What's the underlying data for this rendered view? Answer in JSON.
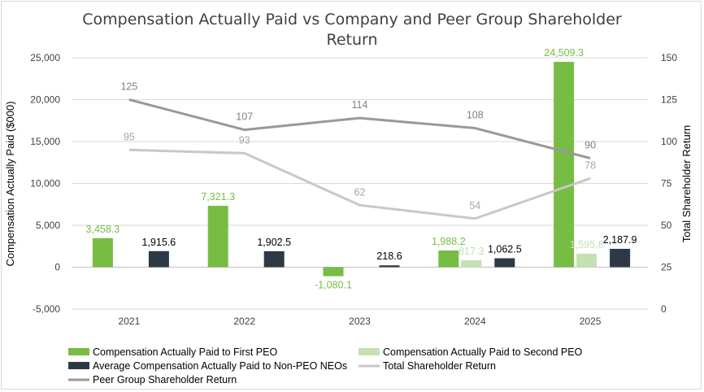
{
  "chart_data": {
    "type": "bar",
    "title_lines": [
      "Compensation Actually Paid vs Company and Peer Group Shareholder",
      "Return"
    ],
    "title": "Compensation Actually Paid vs Company and Peer Group Shareholder Return",
    "categories": [
      "2021",
      "2022",
      "2023",
      "2024",
      "2025"
    ],
    "ylabel": "Compensation Actually Paid ($000)",
    "y2label": "Total Shareholder Return",
    "ylim": [
      -5000,
      25000
    ],
    "y2lim": [
      0,
      150
    ],
    "yticks": [
      -5000,
      0,
      5000,
      10000,
      15000,
      20000,
      25000
    ],
    "ytick_labels": [
      "-5,000",
      "0",
      "5,000",
      "10,000",
      "15,000",
      "20,000",
      "25,000"
    ],
    "y2ticks": [
      0,
      25,
      50,
      75,
      100,
      125,
      150
    ],
    "y2tick_labels": [
      "0",
      "25",
      "50",
      "75",
      "100",
      "125",
      "150"
    ],
    "grid": true,
    "legend_position": "bottom",
    "bar_series": [
      {
        "name": "Compensation Actually Paid to First PEO",
        "color": "#77bc43",
        "values": [
          3458.3,
          7321.3,
          -1080.1,
          1988.2,
          24509.3
        ],
        "labels": [
          "3,458.3",
          "7,321.3",
          "-1,080.1",
          "1,988.2",
          "24,509.3"
        ],
        "label_color": "#77bc43"
      },
      {
        "name": "Compensation Actually Paid to Second PEO",
        "color": "#c5e0b3",
        "values": [
          null,
          null,
          null,
          817.3,
          1595.8
        ],
        "labels": [
          null,
          null,
          null,
          "817.3",
          "1,595.8"
        ],
        "label_color": "#c5e0b3"
      },
      {
        "name": "Average Compensation Actually Paid to Non-PEO NEOs",
        "color": "#2d3a45",
        "values": [
          1915.6,
          1902.5,
          218.6,
          1062.5,
          2187.9
        ],
        "labels": [
          "1,915.6",
          "1,902.5",
          "218.6",
          "1,062.5",
          "2,187.9"
        ],
        "label_color": "#000000"
      }
    ],
    "line_series": [
      {
        "name": "Total Shareholder Return",
        "color": "#c8c8c8",
        "axis": "right",
        "values": [
          95,
          93,
          62,
          54,
          78
        ],
        "labels": [
          "95",
          "93",
          "62",
          "54",
          "78"
        ],
        "label_color": "#a6a6a6"
      },
      {
        "name": "Peer Group Shareholder Return",
        "color": "#999999",
        "axis": "right",
        "values": [
          125,
          107,
          114,
          108,
          90
        ],
        "labels": [
          "125",
          "107",
          "114",
          "108",
          "90"
        ],
        "label_color": "#7f7f7f"
      }
    ],
    "legend": [
      {
        "name": "Compensation Actually Paid to First PEO",
        "kind": "bar",
        "color": "#77bc43"
      },
      {
        "name": "Compensation Actually Paid to Second PEO",
        "kind": "bar",
        "color": "#c5e0b3"
      },
      {
        "name": "Average Compensation Actually Paid to Non-PEO NEOs",
        "kind": "bar",
        "color": "#2d3a45"
      },
      {
        "name": "Total Shareholder Return",
        "kind": "line",
        "color": "#c8c8c8"
      },
      {
        "name": "Peer Group Shareholder Return",
        "kind": "line",
        "color": "#999999"
      }
    ]
  }
}
